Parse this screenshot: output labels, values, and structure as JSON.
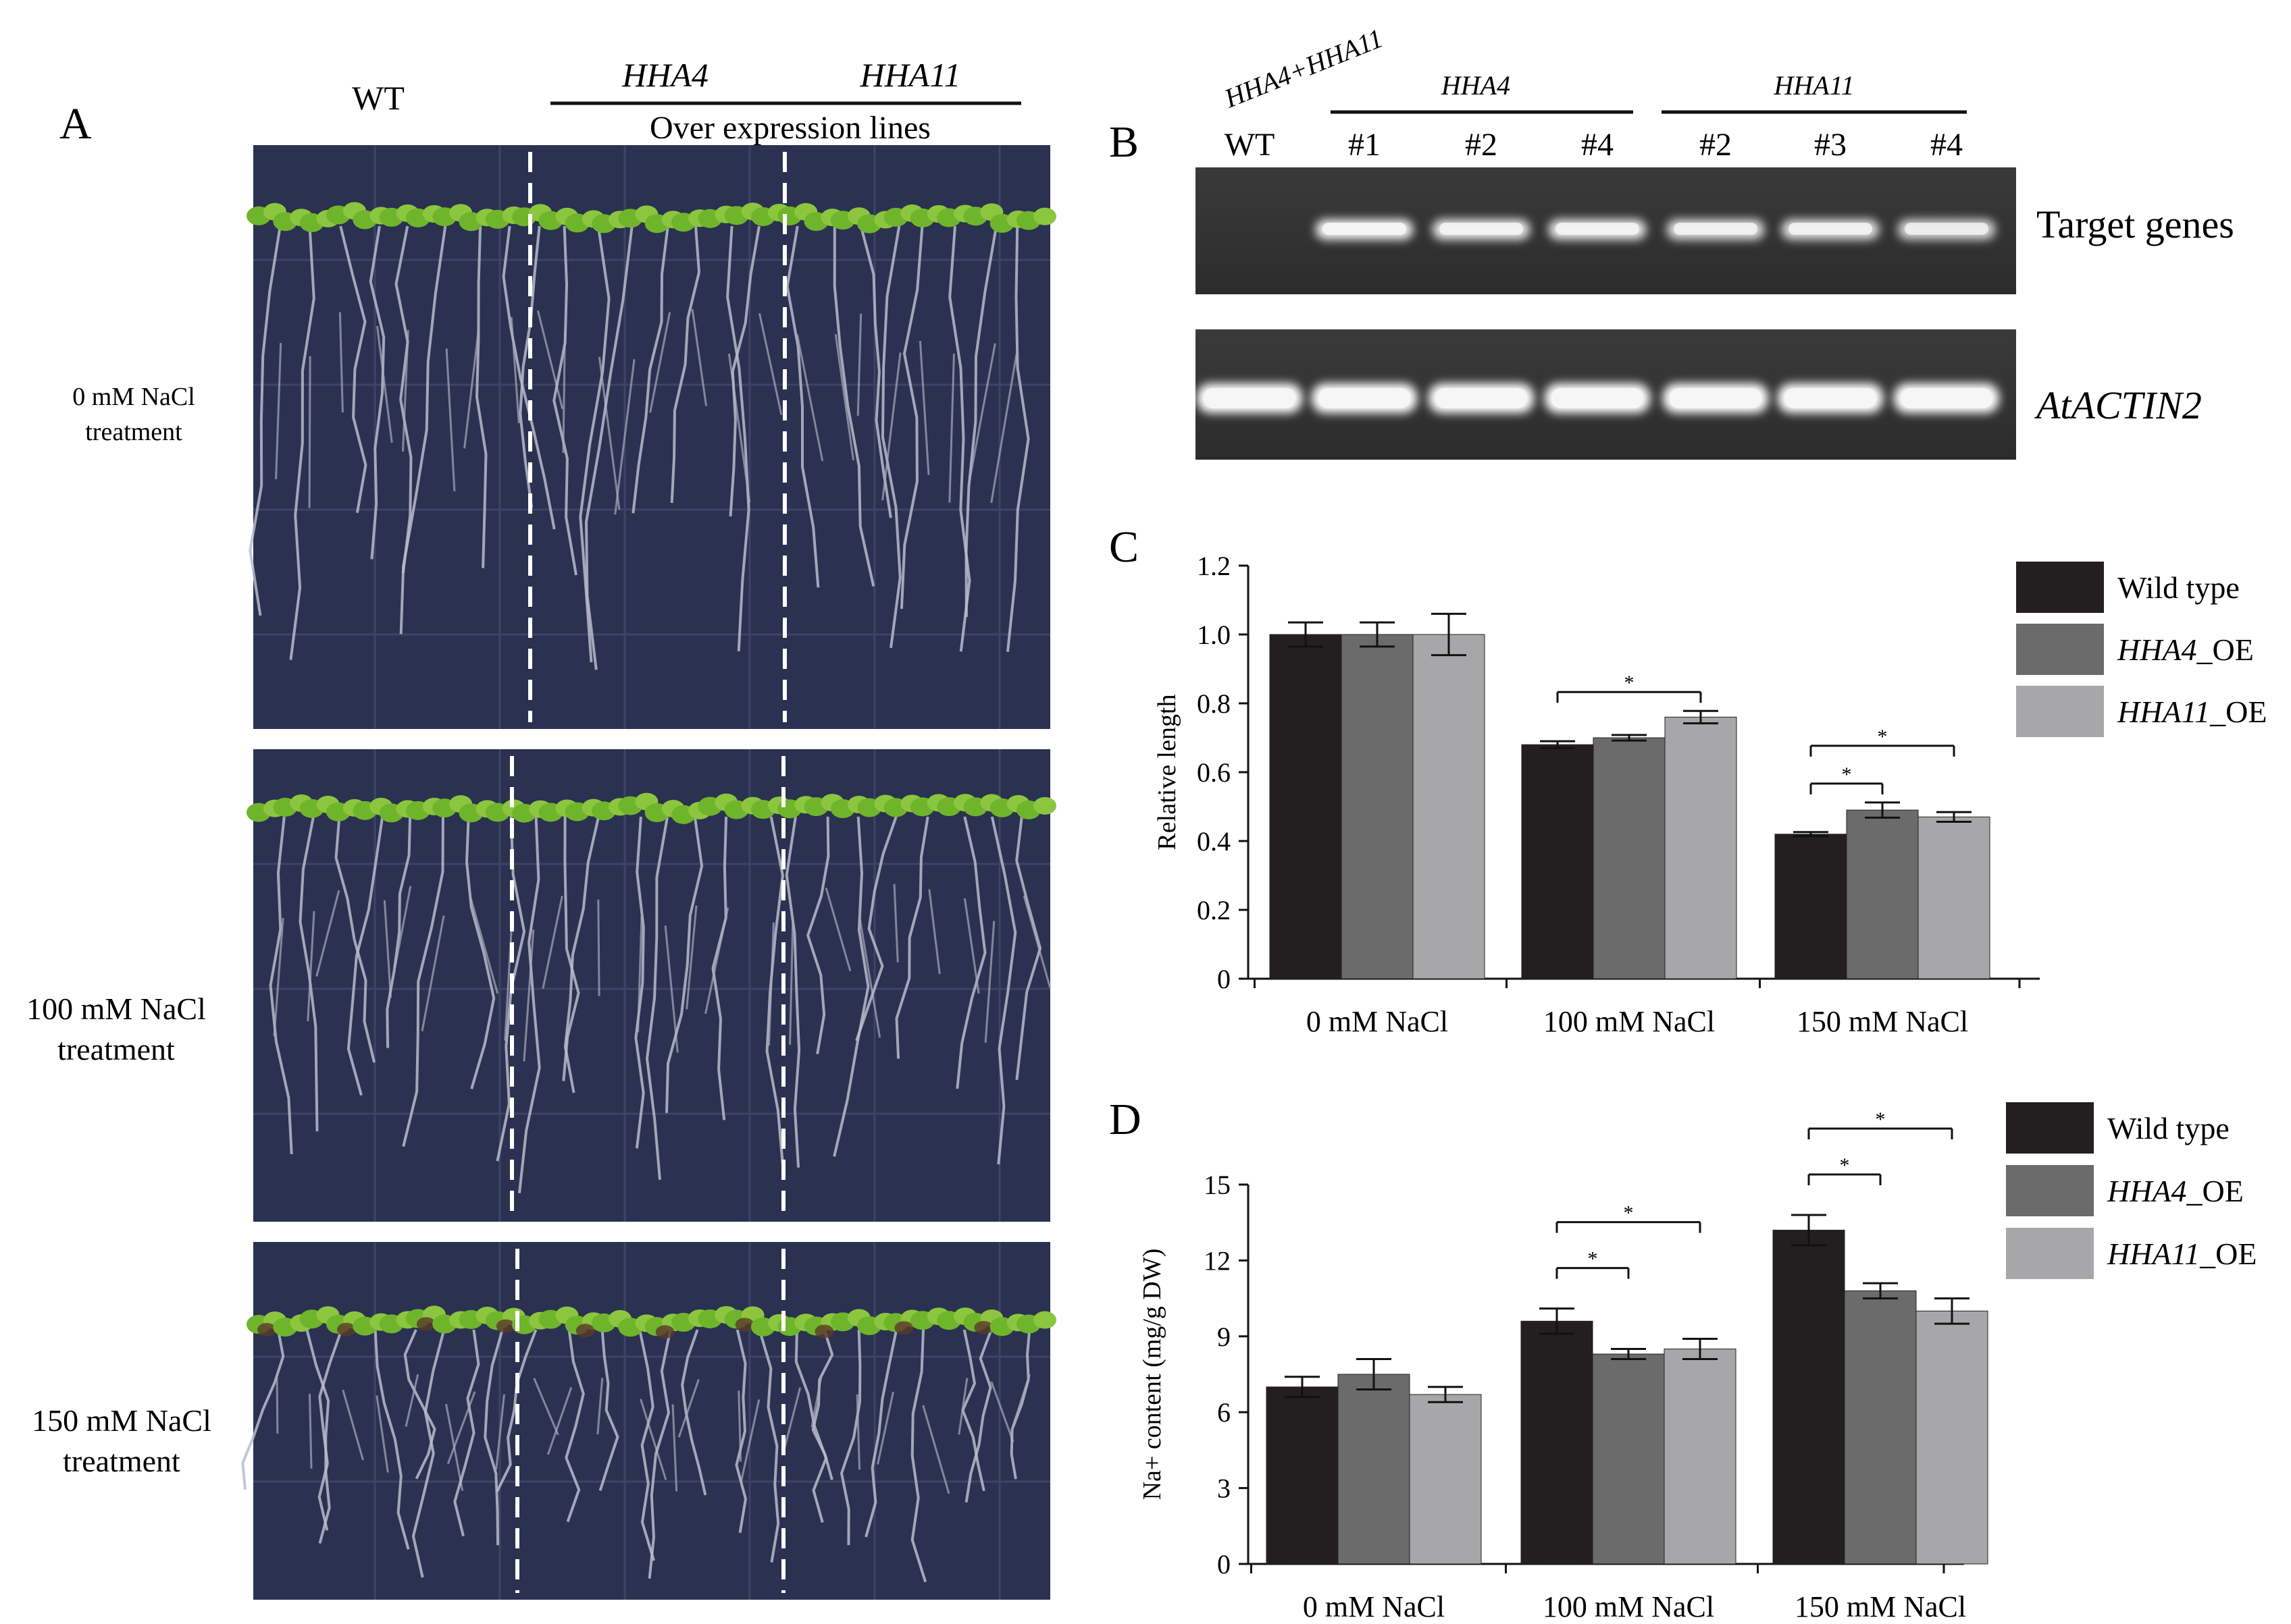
{
  "panelA": {
    "letter": "A",
    "col_wt": "WT",
    "col_hha4": "HHA4",
    "col_hha11": "HHA11",
    "group_label": "Over expression lines",
    "rows": [
      {
        "conc": "0 mM NaCl",
        "sub": "treatment"
      },
      {
        "conc": "100 mM NaCl",
        "sub": "treatment"
      },
      {
        "conc": "150 mM NaCl",
        "sub": "treatment"
      }
    ],
    "plate_color": "#2b3150"
  },
  "panelB": {
    "letter": "B",
    "diag_label": "HHA4+HHA11",
    "wt_label": "WT",
    "group_hha4": "HHA4",
    "group_hha11": "HHA11",
    "lanes": [
      "#1",
      "#2",
      "#4",
      "#2",
      "#3",
      "#4"
    ],
    "target_label": "Target genes",
    "actin_label": "AtACTIN2",
    "target_band_intensity": [
      0,
      0.95,
      0.9,
      0.9,
      0.85,
      0.85,
      0.8
    ],
    "actin_band_intensity": [
      1,
      1,
      1,
      1,
      1,
      1,
      1
    ]
  },
  "colors": {
    "wild_type": "#231f20",
    "hha4_oe": "#6b6b6b",
    "hha11_oe": "#a7a7a9"
  },
  "chart_data": [
    {
      "panel": "C",
      "type": "bar",
      "ylabel": "Relative length",
      "ylim": [
        0,
        1.2
      ],
      "yticks": [
        "0",
        "0.2",
        "0.4",
        "0.6",
        "0.8",
        "1.0",
        "1.2"
      ],
      "categories": [
        "0 mM NaCl",
        "100 mM NaCl",
        "150 mM NaCl"
      ],
      "series": [
        {
          "name": "Wild type",
          "values": [
            1.0,
            0.68,
            0.42
          ],
          "errors": [
            0.035,
            0.01,
            0.006
          ]
        },
        {
          "name": "HHA4_OE",
          "values": [
            1.0,
            0.7,
            0.49
          ],
          "errors": [
            0.035,
            0.008,
            0.022
          ]
        },
        {
          "name": "HHA11_OE",
          "values": [
            1.0,
            0.76,
            0.47
          ],
          "errors": [
            0.06,
            0.018,
            0.014
          ]
        }
      ],
      "legend": [
        {
          "italic": "",
          "text": "Wild type"
        },
        {
          "italic": "HHA4",
          "text": "_OE"
        },
        {
          "italic": "HHA11",
          "text": "_OE"
        }
      ],
      "legend_position": "right",
      "significance": [
        {
          "category": 1,
          "from": 0,
          "to": 2,
          "mark": "*"
        },
        {
          "category": 2,
          "from": 0,
          "to": 1,
          "mark": "*"
        },
        {
          "category": 2,
          "from": 0,
          "to": 2,
          "mark": "*"
        }
      ]
    },
    {
      "panel": "D",
      "type": "bar",
      "ylabel": "Na+ content (mg/g DW)",
      "ylim": [
        0,
        15
      ],
      "yticks": [
        "0",
        "3",
        "6",
        "9",
        "12",
        "15"
      ],
      "categories": [
        "0 mM NaCl",
        "100 mM NaCl",
        "150 mM NaCl"
      ],
      "series": [
        {
          "name": "Wild type",
          "values": [
            7.0,
            9.6,
            13.2
          ],
          "errors": [
            0.4,
            0.5,
            0.6
          ]
        },
        {
          "name": "HHA4_OE",
          "values": [
            7.5,
            8.3,
            10.8
          ],
          "errors": [
            0.6,
            0.2,
            0.3
          ]
        },
        {
          "name": "HHA11_OE",
          "values": [
            6.7,
            8.5,
            10.0
          ],
          "errors": [
            0.3,
            0.4,
            0.5
          ]
        }
      ],
      "legend": [
        {
          "italic": "",
          "text": "Wild type"
        },
        {
          "italic": "HHA4",
          "text": "_OE"
        },
        {
          "italic": "HHA11",
          "text": "_OE"
        }
      ],
      "legend_position": "right",
      "significance": [
        {
          "category": 1,
          "from": 0,
          "to": 1,
          "mark": "*"
        },
        {
          "category": 1,
          "from": 0,
          "to": 2,
          "mark": "*"
        },
        {
          "category": 2,
          "from": 0,
          "to": 1,
          "mark": "*"
        },
        {
          "category": 2,
          "from": 0,
          "to": 2,
          "mark": "*"
        }
      ]
    }
  ]
}
